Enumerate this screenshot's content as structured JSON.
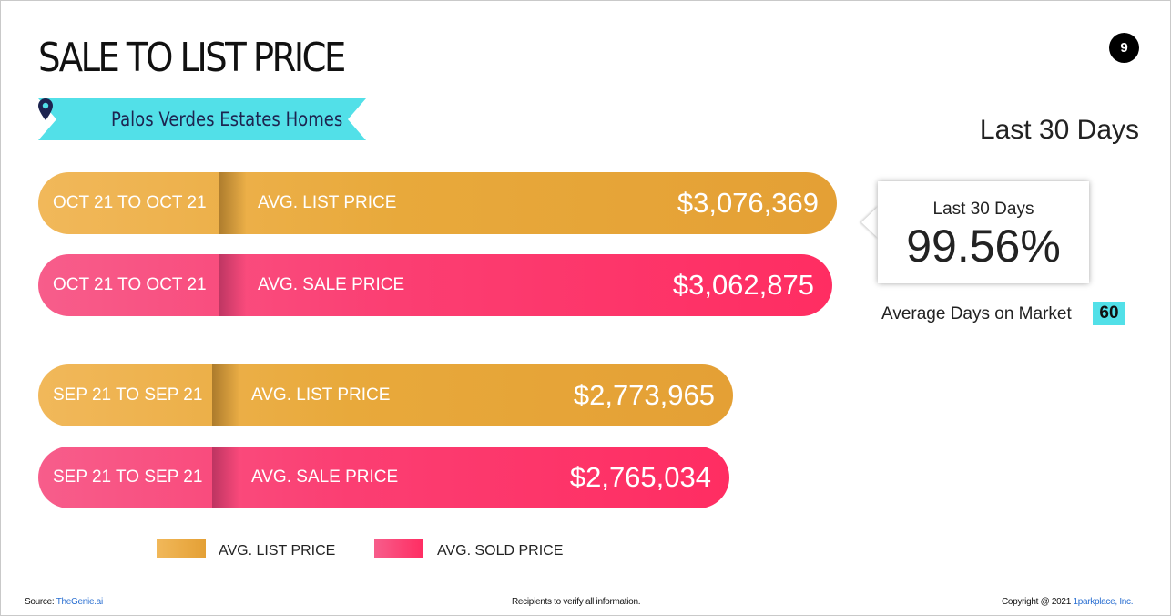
{
  "page": {
    "title": "SALE TO LIST PRICE",
    "page_number": "9",
    "location": "Palos Verdes Estates Homes",
    "period_title": "Last 30 Days"
  },
  "colors": {
    "list": "#e8a93b",
    "sale": "#fb3e72",
    "ribbon": "#52e0e8",
    "highlight": "#52e0e8"
  },
  "chart_data": {
    "type": "bar",
    "orientation": "horizontal",
    "rows": [
      {
        "period": "OCT 21 TO OCT 21",
        "label": "AVG. LIST PRICE",
        "value": 3076369,
        "display": "$3,076,369",
        "series": "list"
      },
      {
        "period": "OCT 21 TO OCT 21",
        "label": "AVG. SALE PRICE",
        "value": 3062875,
        "display": "$3,062,875",
        "series": "sale"
      },
      {
        "period": "SEP 21 TO SEP 21",
        "label": "AVG. LIST PRICE",
        "value": 2773965,
        "display": "$2,773,965",
        "series": "list"
      },
      {
        "period": "SEP 21 TO SEP 21",
        "label": "AVG. SALE PRICE",
        "value": 2765034,
        "display": "$2,765,034",
        "series": "sale"
      }
    ],
    "legend": [
      {
        "name": "AVG. LIST PRICE",
        "series": "list"
      },
      {
        "name": "AVG. SOLD PRICE",
        "series": "sale"
      }
    ]
  },
  "summary": {
    "box_title": "Last 30 Days",
    "sale_to_list": "99.56%",
    "dom_label": "Average Days on Market",
    "dom_value": "60"
  },
  "footer": {
    "source_label": "Source:",
    "source_link": "TheGenie.ai",
    "disclaimer": "Recipients to verify all information.",
    "copyright": "Copyright @ 2021",
    "company": "1parkplace, Inc."
  }
}
